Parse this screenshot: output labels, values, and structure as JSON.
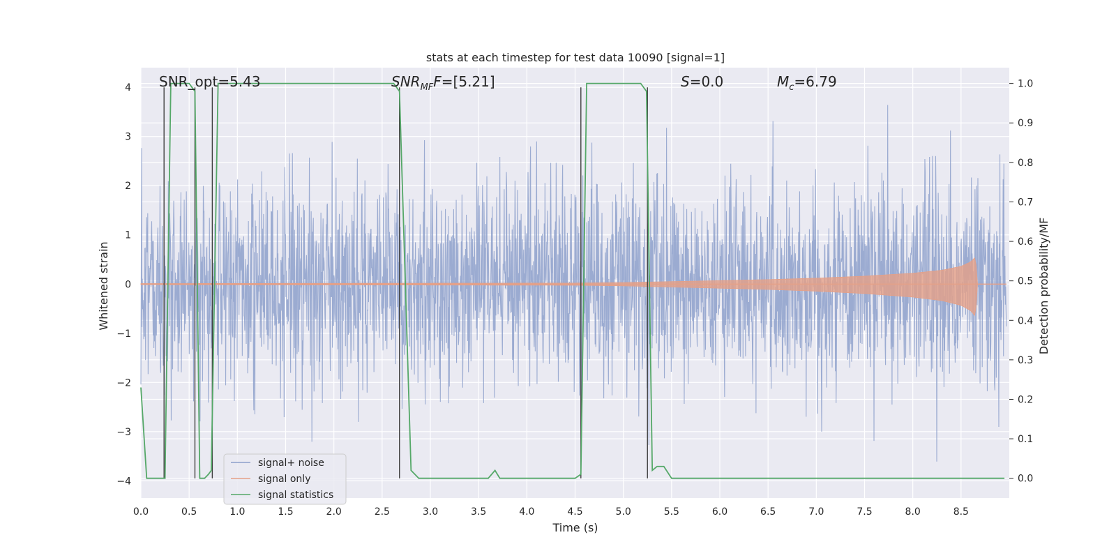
{
  "chart_data": {
    "type": "line",
    "title": "stats at each timestep for test data 10090 [signal=1]",
    "xlabel": "Time (s)",
    "ylabel": "Whitened strain",
    "y2label": "Detection probability/MF",
    "xlim": [
      0.0,
      9.0
    ],
    "ylim": [
      -4.35,
      4.4
    ],
    "y2lim": [
      -0.05,
      1.04
    ],
    "x_ticks": [
      0.0,
      0.5,
      1.0,
      1.5,
      2.0,
      2.5,
      3.0,
      3.5,
      4.0,
      4.5,
      5.0,
      5.5,
      6.0,
      6.5,
      7.0,
      7.5,
      8.0,
      8.5
    ],
    "x_tick_labels": [
      "0.0",
      "0.5",
      "1.0",
      "1.5",
      "2.0",
      "2.5",
      "3.0",
      "3.5",
      "4.0",
      "4.5",
      "5.0",
      "5.5",
      "6.0",
      "6.5",
      "7.0",
      "7.5",
      "8.0",
      "8.5"
    ],
    "y_ticks": [
      4,
      3,
      2,
      1,
      0,
      -1,
      -2,
      -3,
      -4
    ],
    "y_tick_labels": [
      "4",
      "3",
      "2",
      "1",
      "0",
      "−1",
      "−2",
      "−3",
      "−4"
    ],
    "y2_ticks": [
      1.0,
      0.9,
      0.8,
      0.7,
      0.6,
      0.5,
      0.4,
      0.3,
      0.2,
      0.1,
      0.0
    ],
    "y2_tick_labels": [
      "1.0",
      "0.9",
      "0.8",
      "0.7",
      "0.6",
      "0.5",
      "0.4",
      "0.3",
      "0.2",
      "0.1",
      "0.0"
    ],
    "grid": true,
    "legend_position": "lower-left",
    "annotations": {
      "snr_opt": "SNR_opt=5.43",
      "snr_mf_main": "SNR",
      "snr_mf_sub": "MF",
      "snr_mf_value": "=[5.21]",
      "s_main": "S",
      "s_value": "=0.0",
      "mc_main": "M",
      "mc_sub": "c",
      "mc_value": "=6.79"
    },
    "series": [
      {
        "name": "signal+ noise",
        "color": "#8da0cb",
        "axis": "left",
        "description_values": "whitened strain noise, approx range -3.7 to 3.8, 1s band about -1.5 to 1.6"
      },
      {
        "name": "signal only",
        "color": "#e5a087",
        "axis": "left",
        "envelope": {
          "t": [
            0.0,
            4.5,
            5.0,
            5.5,
            6.0,
            6.5,
            7.0,
            7.5,
            8.0,
            8.3,
            8.5,
            8.6,
            8.65,
            8.67,
            9.0
          ],
          "amp": [
            0.01,
            0.02,
            0.03,
            0.05,
            0.07,
            0.09,
            0.12,
            0.16,
            0.22,
            0.28,
            0.36,
            0.45,
            0.55,
            0.0,
            0.0
          ]
        }
      },
      {
        "name": "signal statistics",
        "color": "#55a868",
        "axis": "right",
        "x": [
          0.0,
          0.06,
          0.25,
          0.31,
          0.5,
          0.56,
          0.61,
          0.66,
          0.7,
          0.73,
          0.8,
          2.62,
          2.68,
          2.8,
          2.88,
          3.6,
          3.67,
          3.72,
          3.8,
          4.5,
          4.56,
          4.62,
          5.18,
          5.24,
          5.3,
          5.35,
          5.42,
          5.5,
          6.25,
          8.95
        ],
        "y": [
          0.23,
          0.0,
          0.0,
          1.0,
          1.0,
          0.98,
          0.0,
          0.0,
          0.01,
          0.02,
          1.0,
          1.0,
          0.98,
          0.02,
          0.0,
          0.0,
          0.02,
          0.0,
          0.0,
          0.0,
          0.01,
          1.0,
          1.0,
          0.98,
          0.02,
          0.03,
          0.03,
          0.0,
          0.0,
          0.0
        ]
      }
    ],
    "vertical_markers": {
      "color": "#404040",
      "x": [
        0.24,
        0.56,
        0.74,
        2.68,
        4.56,
        5.25
      ],
      "y_top": [
        4.0,
        4.0,
        4.0,
        4.0,
        4.0,
        4.0
      ]
    }
  }
}
